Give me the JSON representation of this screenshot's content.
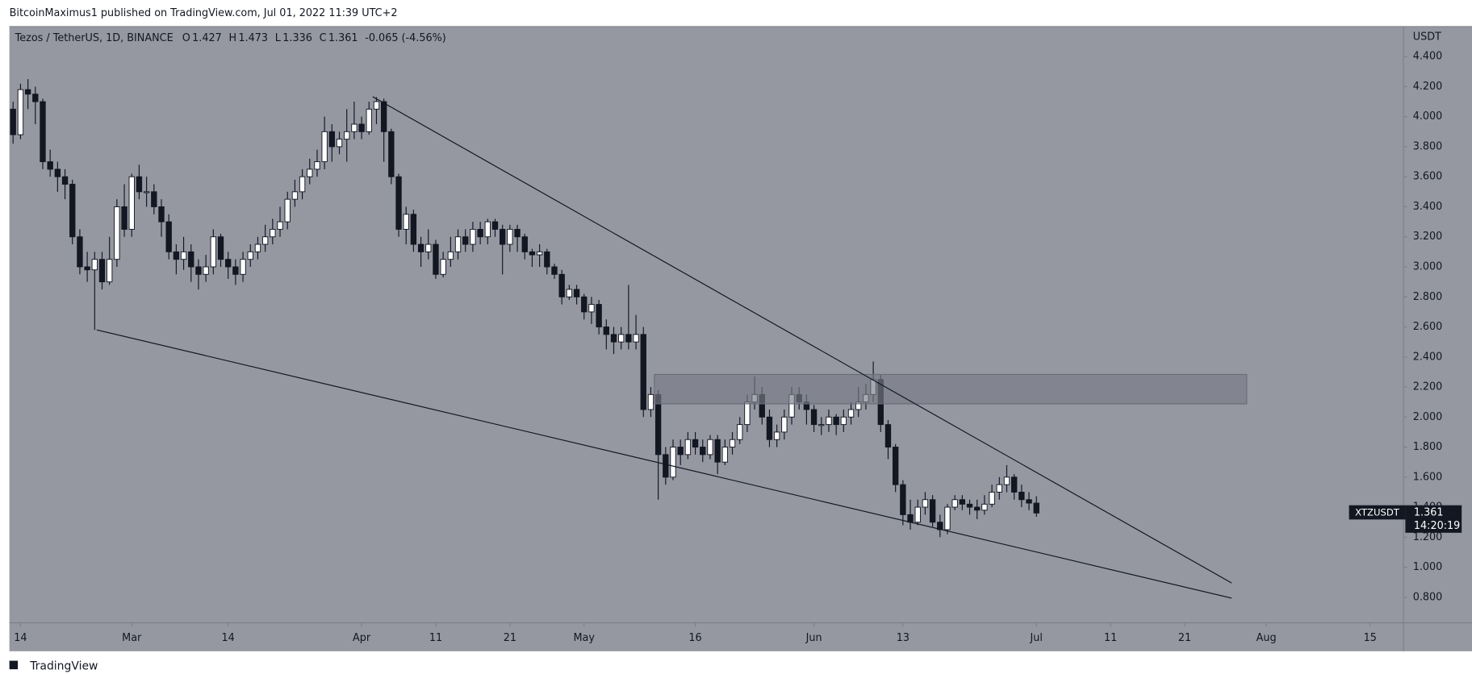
{
  "chart_data": {
    "type": "candlestick",
    "publisher_line": "BitcoinMaximus1 published on TradingView.com, Jul 01, 2022 11:39 UTC+2",
    "title": "Tezos / TetherUS, 1D, BINANCE",
    "ohlc_letters": [
      "O",
      "H",
      "L",
      "C"
    ],
    "change_label": "-0.065 (-4.56%)",
    "y_axis_label": "USDT",
    "symbol_label": "XTZUSDT",
    "countdown": "14:20:19",
    "brand": "TradingView",
    "up_color": "#ffffff",
    "down_color": "#131722",
    "wick_color": "#131722",
    "grid": false,
    "x": [
      "02-12",
      "02-13",
      "02-14",
      "02-15",
      "02-16",
      "02-17",
      "02-18",
      "02-19",
      "02-20",
      "02-21",
      "02-22",
      "02-23",
      "02-24",
      "02-25",
      "02-26",
      "02-27",
      "02-28",
      "03-01",
      "03-02",
      "03-03",
      "03-04",
      "03-05",
      "03-06",
      "03-07",
      "03-08",
      "03-09",
      "03-10",
      "03-11",
      "03-12",
      "03-13",
      "03-14",
      "03-15",
      "03-16",
      "03-17",
      "03-18",
      "03-19",
      "03-20",
      "03-21",
      "03-22",
      "03-23",
      "03-24",
      "03-25",
      "03-26",
      "03-27",
      "03-28",
      "03-29",
      "03-30",
      "03-31",
      "04-01",
      "04-02",
      "04-03",
      "04-04",
      "04-05",
      "04-06",
      "04-07",
      "04-08",
      "04-09",
      "04-10",
      "04-11",
      "04-12",
      "04-13",
      "04-14",
      "04-15",
      "04-16",
      "04-17",
      "04-18",
      "04-19",
      "04-20",
      "04-21",
      "04-22",
      "04-23",
      "04-24",
      "04-25",
      "04-26",
      "04-27",
      "04-28",
      "04-29",
      "04-30",
      "05-01",
      "05-02",
      "05-03",
      "05-04",
      "05-05",
      "05-06",
      "05-07",
      "05-08",
      "05-09",
      "05-10",
      "05-11",
      "05-12",
      "05-13",
      "05-14",
      "05-15",
      "05-16",
      "05-17",
      "05-18",
      "05-19",
      "05-20",
      "05-21",
      "05-22",
      "05-23",
      "05-24",
      "05-25",
      "05-26",
      "05-27",
      "05-28",
      "05-29",
      "05-30",
      "05-31",
      "06-01",
      "06-02",
      "06-03",
      "06-04",
      "06-05",
      "06-06",
      "06-07",
      "06-08",
      "06-09",
      "06-10",
      "06-11",
      "06-12",
      "06-13",
      "06-14",
      "06-15",
      "06-16",
      "06-17",
      "06-18",
      "06-19",
      "06-20",
      "06-21",
      "06-22",
      "06-23",
      "06-24",
      "06-25",
      "06-26",
      "06-27",
      "06-28",
      "06-29",
      "06-30",
      "07-01"
    ],
    "open": [
      4.2,
      4.05,
      3.88,
      4.18,
      4.15,
      4.1,
      3.7,
      3.65,
      3.6,
      3.55,
      3.2,
      3.0,
      2.98,
      3.05,
      2.9,
      3.05,
      3.4,
      3.25,
      3.6,
      3.5,
      3.5,
      3.4,
      3.3,
      3.1,
      3.05,
      3.1,
      3.0,
      2.95,
      3.0,
      3.2,
      3.05,
      3.0,
      2.95,
      3.05,
      3.1,
      3.15,
      3.2,
      3.25,
      3.3,
      3.45,
      3.5,
      3.6,
      3.65,
      3.7,
      3.9,
      3.8,
      3.85,
      3.9,
      3.95,
      3.9,
      4.05,
      4.1,
      3.9,
      3.6,
      3.25,
      3.35,
      3.15,
      3.1,
      3.15,
      2.95,
      3.05,
      3.1,
      3.2,
      3.15,
      3.25,
      3.2,
      3.3,
      3.25,
      3.15,
      3.25,
      3.2,
      3.1,
      3.08,
      3.1,
      3.0,
      2.95,
      2.8,
      2.85,
      2.8,
      2.7,
      2.75,
      2.6,
      2.55,
      2.5,
      2.55,
      2.5,
      2.55,
      2.05,
      2.15,
      1.75,
      1.6,
      1.8,
      1.75,
      1.85,
      1.8,
      1.75,
      1.85,
      1.7,
      1.8,
      1.85,
      1.95,
      2.1,
      2.15,
      2.0,
      1.85,
      1.9,
      2.0,
      2.15,
      2.1,
      2.05,
      1.95,
      1.95,
      2.0,
      1.95,
      2.0,
      2.05,
      2.1,
      2.15,
      2.25,
      1.95,
      1.8,
      1.55,
      1.35,
      1.3,
      1.4,
      1.45,
      1.3,
      1.25,
      1.4,
      1.45,
      1.42,
      1.4,
      1.38,
      1.42,
      1.5,
      1.55,
      1.6,
      1.5,
      1.45,
      1.427
    ],
    "high": [
      4.28,
      4.1,
      4.22,
      4.25,
      4.2,
      4.12,
      3.78,
      3.7,
      3.65,
      3.58,
      3.25,
      3.1,
      3.1,
      3.1,
      3.2,
      3.45,
      3.55,
      3.62,
      3.68,
      3.6,
      3.55,
      3.45,
      3.35,
      3.15,
      3.2,
      3.15,
      3.05,
      3.08,
      3.25,
      3.22,
      3.1,
      3.05,
      3.1,
      3.15,
      3.2,
      3.28,
      3.32,
      3.4,
      3.5,
      3.58,
      3.65,
      3.72,
      3.78,
      4.0,
      3.95,
      3.9,
      4.05,
      4.1,
      4.0,
      4.1,
      4.13,
      4.12,
      3.92,
      3.62,
      3.4,
      3.38,
      3.2,
      3.25,
      3.18,
      3.1,
      3.2,
      3.25,
      3.25,
      3.3,
      3.3,
      3.32,
      3.32,
      3.28,
      3.28,
      3.28,
      3.22,
      3.12,
      3.15,
      3.12,
      3.02,
      2.98,
      2.88,
      2.88,
      2.82,
      2.8,
      2.78,
      2.65,
      2.6,
      2.6,
      2.88,
      2.68,
      2.6,
      2.2,
      2.18,
      1.8,
      1.85,
      1.85,
      1.9,
      1.9,
      1.85,
      1.88,
      1.88,
      1.85,
      1.9,
      2.0,
      2.15,
      2.27,
      2.2,
      2.05,
      1.95,
      2.05,
      2.2,
      2.2,
      2.15,
      2.08,
      2.0,
      2.05,
      2.02,
      2.05,
      2.1,
      2.2,
      2.22,
      2.37,
      2.28,
      1.98,
      1.82,
      1.58,
      1.45,
      1.45,
      1.5,
      1.48,
      1.35,
      1.42,
      1.48,
      1.48,
      1.45,
      1.45,
      1.48,
      1.55,
      1.6,
      1.68,
      1.62,
      1.55,
      1.5,
      1.473
    ],
    "low": [
      3.98,
      3.82,
      3.85,
      4.05,
      3.95,
      3.65,
      3.6,
      3.5,
      3.45,
      3.15,
      2.95,
      2.9,
      2.58,
      2.85,
      2.88,
      3.0,
      3.2,
      3.2,
      3.45,
      3.4,
      3.35,
      3.2,
      3.05,
      2.95,
      2.98,
      2.9,
      2.85,
      2.9,
      2.95,
      3.0,
      2.92,
      2.88,
      2.9,
      3.0,
      3.05,
      3.1,
      3.15,
      3.2,
      3.25,
      3.4,
      3.45,
      3.55,
      3.6,
      3.65,
      3.7,
      3.75,
      3.7,
      3.85,
      3.85,
      3.88,
      3.95,
      3.7,
      3.55,
      3.2,
      3.15,
      3.1,
      3.0,
      3.05,
      2.92,
      2.93,
      3.0,
      3.05,
      3.1,
      3.1,
      3.15,
      3.15,
      3.2,
      2.95,
      3.1,
      3.1,
      3.05,
      3.0,
      3.0,
      2.95,
      2.92,
      2.75,
      2.78,
      2.75,
      2.65,
      2.62,
      2.55,
      2.45,
      2.42,
      2.45,
      2.45,
      2.45,
      2.0,
      2.0,
      1.45,
      1.55,
      1.58,
      1.68,
      1.72,
      1.75,
      1.7,
      1.72,
      1.62,
      1.68,
      1.75,
      1.82,
      1.9,
      2.05,
      1.95,
      1.8,
      1.8,
      1.85,
      1.95,
      2.05,
      1.95,
      1.9,
      1.88,
      1.9,
      1.88,
      1.9,
      1.95,
      2.0,
      2.05,
      2.1,
      1.9,
      1.72,
      1.5,
      1.28,
      1.25,
      1.28,
      1.35,
      1.27,
      1.2,
      1.22,
      1.38,
      1.38,
      1.35,
      1.32,
      1.35,
      1.4,
      1.45,
      1.5,
      1.45,
      1.4,
      1.38,
      1.336
    ],
    "close": [
      4.05,
      3.88,
      4.18,
      4.15,
      4.1,
      3.7,
      3.65,
      3.6,
      3.55,
      3.2,
      3.0,
      2.98,
      3.05,
      2.9,
      3.05,
      3.4,
      3.25,
      3.6,
      3.5,
      3.5,
      3.4,
      3.3,
      3.1,
      3.05,
      3.1,
      3.0,
      2.95,
      3.0,
      3.2,
      3.05,
      3.0,
      2.95,
      3.05,
      3.1,
      3.15,
      3.2,
      3.25,
      3.3,
      3.45,
      3.5,
      3.6,
      3.65,
      3.7,
      3.9,
      3.8,
      3.85,
      3.9,
      3.95,
      3.9,
      4.05,
      4.1,
      3.9,
      3.6,
      3.25,
      3.35,
      3.15,
      3.1,
      3.15,
      2.95,
      3.05,
      3.1,
      3.2,
      3.15,
      3.25,
      3.2,
      3.3,
      3.25,
      3.15,
      3.25,
      3.2,
      3.1,
      3.08,
      3.1,
      3.0,
      2.95,
      2.8,
      2.85,
      2.8,
      2.7,
      2.75,
      2.6,
      2.55,
      2.5,
      2.55,
      2.5,
      2.55,
      2.05,
      2.15,
      1.75,
      1.6,
      1.8,
      1.75,
      1.85,
      1.8,
      1.75,
      1.85,
      1.7,
      1.8,
      1.85,
      1.95,
      2.1,
      2.15,
      2.0,
      1.85,
      1.9,
      2.0,
      2.15,
      2.1,
      2.05,
      1.95,
      1.95,
      2.0,
      1.95,
      2.0,
      2.05,
      2.1,
      2.15,
      2.25,
      1.95,
      1.8,
      1.55,
      1.35,
      1.3,
      1.4,
      1.45,
      1.3,
      1.25,
      1.4,
      1.45,
      1.42,
      1.4,
      1.38,
      1.42,
      1.5,
      1.55,
      1.6,
      1.5,
      1.45,
      1.427,
      1.361
    ],
    "xlim": [
      "02-13",
      "08-19"
    ],
    "xticks": [
      {
        "value": "02-14",
        "label": "14"
      },
      {
        "value": "03-01",
        "label": "Mar"
      },
      {
        "value": "03-14",
        "label": "14"
      },
      {
        "value": "04-01",
        "label": "Apr"
      },
      {
        "value": "04-11",
        "label": "11"
      },
      {
        "value": "04-21",
        "label": "21"
      },
      {
        "value": "05-01",
        "label": "May"
      },
      {
        "value": "05-16",
        "label": "16"
      },
      {
        "value": "06-01",
        "label": "Jun"
      },
      {
        "value": "06-13",
        "label": "13"
      },
      {
        "value": "07-01",
        "label": "Jul"
      },
      {
        "value": "07-11",
        "label": "11"
      },
      {
        "value": "07-21",
        "label": "21"
      },
      {
        "value": "08-01",
        "label": "Aug"
      },
      {
        "value": "08-15",
        "label": "15"
      }
    ],
    "ylim": [
      0.63,
      4.6
    ],
    "yticks": [
      {
        "value": 0.8,
        "label": "0.800"
      },
      {
        "value": 1.0,
        "label": "1.000"
      },
      {
        "value": 1.2,
        "label": "1.200"
      },
      {
        "value": 1.4,
        "label": "1.400"
      },
      {
        "value": 1.6,
        "label": "1.600"
      },
      {
        "value": 1.8,
        "label": "1.800"
      },
      {
        "value": 2.0,
        "label": "2.000"
      },
      {
        "value": 2.2,
        "label": "2.200"
      },
      {
        "value": 2.4,
        "label": "2.400"
      },
      {
        "value": 2.6,
        "label": "2.600"
      },
      {
        "value": 2.8,
        "label": "2.800"
      },
      {
        "value": 3.0,
        "label": "3.000"
      },
      {
        "value": 3.2,
        "label": "3.200"
      },
      {
        "value": 3.4,
        "label": "3.400"
      },
      {
        "value": 3.6,
        "label": "3.600"
      },
      {
        "value": 3.8,
        "label": "3.800"
      },
      {
        "value": 4.0,
        "label": "4.000"
      },
      {
        "value": 4.2,
        "label": "4.200"
      },
      {
        "value": 4.4,
        "label": "4.400"
      }
    ]
  }
}
